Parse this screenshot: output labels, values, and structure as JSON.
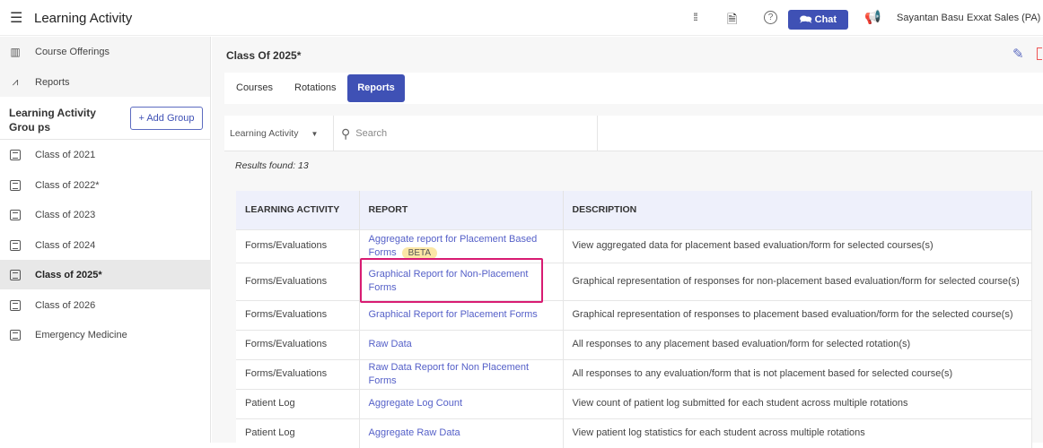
{
  "header": {
    "title": "Learning Activity",
    "chat_label": "Chat",
    "user_name": "Sayantan Basu",
    "org": "Exxat Sales (PA)"
  },
  "sidebar": {
    "nav": [
      {
        "label": "Course Offerings",
        "icon": "books-icon"
      },
      {
        "label": "Reports",
        "icon": "chart-line-icon"
      }
    ],
    "group_title": "Learning Activity Grou ps",
    "add_group_label": "+ Add Group",
    "groups": [
      "Class of 2021",
      "Class of 2022*",
      "Class of 2023",
      "Class of 2024",
      "Class of 2025*",
      "Class of 2026",
      "Emergency Medicine"
    ],
    "selected": "Class of 2025*"
  },
  "main": {
    "title": "Class Of 2025*",
    "tabs": [
      "Courses",
      "Rotations",
      "Reports"
    ],
    "active_tab": "Reports",
    "filter_value": "Learning Activity",
    "search_placeholder": "Search",
    "results": "Results found: 13",
    "columns": [
      "LEARNING ACTIVITY",
      "REPORT",
      "DESCRIPTION"
    ],
    "rows": [
      {
        "activity": "Forms/Evaluations",
        "report": "Aggregate report for Placement Based Forms",
        "badge": "BETA",
        "description": "View aggregated data for placement based evaluation/form for selected courses(s)"
      },
      {
        "activity": "Forms/Evaluations",
        "report": "Graphical Report for Non-Placement Forms",
        "description": "Graphical representation of responses for non-placement based evaluation/form for selected course(s)",
        "highlighted": true
      },
      {
        "activity": "Forms/Evaluations",
        "report": "Graphical Report for Placement Forms",
        "description": "Graphical representation of responses to placement based evaluation/form for the selected course(s)"
      },
      {
        "activity": "Forms/Evaluations",
        "report": "Raw Data",
        "description": "All responses to any placement based evaluation/form for selected rotation(s)"
      },
      {
        "activity": "Forms/Evaluations",
        "report": "Raw Data Report for Non Placement Forms",
        "description": "All responses to any evaluation/form that is not placement based for selected course(s)"
      },
      {
        "activity": "Patient Log",
        "report": "Aggregate Log Count",
        "description": "View count of patient log submitted for each student across multiple rotations"
      },
      {
        "activity": "Patient Log",
        "report": "Aggregate Raw Data",
        "description": "View patient log statistics for each student across multiple rotations"
      }
    ]
  },
  "colors": {
    "accent": "#3f51b5",
    "highlight": "#d81b72",
    "link": "#5560c8"
  }
}
